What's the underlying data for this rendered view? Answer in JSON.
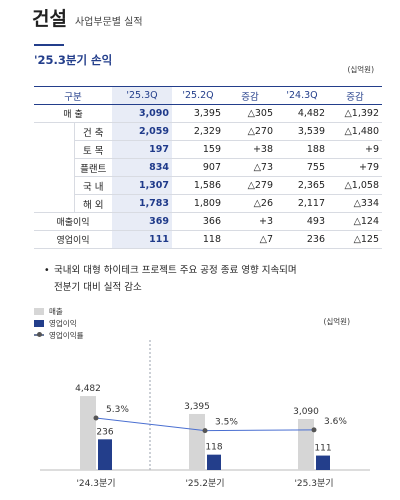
{
  "header": {
    "title": "건설",
    "subtitle": "사업부문별 실적"
  },
  "section": {
    "title": "'25.3분기 손익",
    "unit": "(십억원)"
  },
  "table": {
    "headers": [
      "구분",
      "'25.3Q",
      "'25.2Q",
      "증감",
      "'24.3Q",
      "증감"
    ],
    "rows": [
      {
        "label": "매 출",
        "sub": "",
        "q3_25": "3,090",
        "q2_25": "3,395",
        "qoq": "△305",
        "q3_24": "4,482",
        "yoy": "△1,392"
      },
      {
        "label": "",
        "sub": "건 축",
        "q3_25": "2,059",
        "q2_25": "2,329",
        "qoq": "△270",
        "q3_24": "3,539",
        "yoy": "△1,480"
      },
      {
        "label": "",
        "sub": "토 목",
        "q3_25": "197",
        "q2_25": "159",
        "qoq": "+38",
        "q3_24": "188",
        "yoy": "+9"
      },
      {
        "label": "",
        "sub": "플랜트",
        "q3_25": "834",
        "q2_25": "907",
        "qoq": "△73",
        "q3_24": "755",
        "yoy": "+79"
      },
      {
        "label": "",
        "sub": "국 내",
        "q3_25": "1,307",
        "q2_25": "1,586",
        "qoq": "△279",
        "q3_24": "2,365",
        "yoy": "△1,058"
      },
      {
        "label": "",
        "sub": "해 외",
        "q3_25": "1,783",
        "q2_25": "1,809",
        "qoq": "△26",
        "q3_24": "2,117",
        "yoy": "△334"
      },
      {
        "label": "매출이익",
        "sub": "",
        "q3_25": "369",
        "q2_25": "366",
        "qoq": "+3",
        "q3_24": "493",
        "yoy": "△124"
      },
      {
        "label": "영업이익",
        "sub": "",
        "q3_25": "111",
        "q2_25": "118",
        "qoq": "△7",
        "q3_24": "236",
        "yoy": "△125"
      }
    ]
  },
  "note": {
    "bullet": "•",
    "text_line1": "국내외 대형 하이테크 프로젝트 주요 공정 종료 영향 지속되며",
    "text_line2": "전분기 대비 실적 감소"
  },
  "chart_data": {
    "type": "bar",
    "unit": "(십억원)",
    "categories": [
      "'24.3분기",
      "'25.2분기",
      "'25.3분기"
    ],
    "series": [
      {
        "name": "매출",
        "values": [
          4482,
          3395,
          3090
        ],
        "labels": [
          "4,482",
          "3,395",
          "3,090"
        ],
        "color": "#d6d6d6"
      },
      {
        "name": "영업이익",
        "values": [
          236,
          118,
          111
        ],
        "labels": [
          "236",
          "118",
          "111"
        ],
        "color": "#233e8b"
      },
      {
        "name": "영업이익률",
        "values": [
          5.3,
          3.5,
          3.6
        ],
        "labels": [
          "5.3%",
          "3.5%",
          "3.6%"
        ],
        "color": "#6b7a99",
        "type": "line"
      }
    ]
  },
  "colors": {
    "accent": "#233e8b",
    "highlight": "#e8ecf6",
    "bar_gray": "#d6d6d6"
  }
}
